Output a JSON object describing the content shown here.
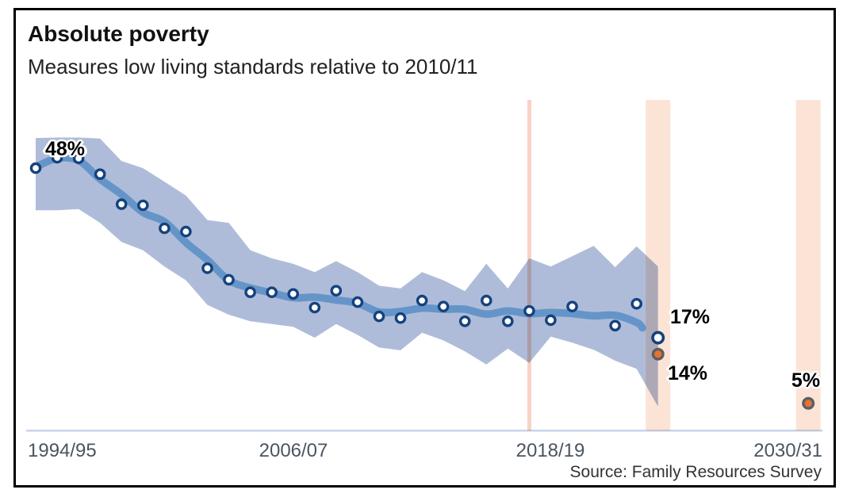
{
  "chart_data": {
    "type": "line",
    "title": "Absolute poverty",
    "subtitle": "Measures low living standards relative to 2010/11",
    "source": "Source: Family Resources Survey",
    "unit": "%",
    "ylabel": "",
    "xlabel": "",
    "ylim": [
      0,
      60.5
    ],
    "grid": false,
    "legend_position": "none",
    "x_tick_labels": [
      "1994/95",
      "2006/07",
      "2018/19",
      "2030/31"
    ],
    "x_tick_year_index": [
      0,
      12,
      24,
      36
    ],
    "years": [
      "1994/95",
      "1995/96",
      "1996/97",
      "1997/98",
      "1998/99",
      "1999/00",
      "2000/01",
      "2001/02",
      "2002/03",
      "2003/04",
      "2004/05",
      "2005/06",
      "2006/07",
      "2007/08",
      "2008/09",
      "2009/10",
      "2010/11",
      "2011/12",
      "2012/13",
      "2013/14",
      "2014/15",
      "2015/16",
      "2016/17",
      "2017/18",
      "2018/19",
      "2019/20",
      "2020/21",
      "2021/22",
      "2022/23",
      "2023/24"
    ],
    "values": [
      48.0,
      49.9,
      49.8,
      46.9,
      41.4,
      41.2,
      37.0,
      36.4,
      29.7,
      27.6,
      25.3,
      25.3,
      25.0,
      22.5,
      25.6,
      23.5,
      20.9,
      20.6,
      23.8,
      22.7,
      20.0,
      23.8,
      20.0,
      21.9,
      20.2,
      22.7,
      null,
      19.2,
      23.2,
      17.0
    ],
    "band_upper": [
      53.5,
      53.6,
      53.6,
      53.4,
      49.3,
      48.0,
      45.5,
      43.0,
      38.5,
      38.0,
      33.0,
      31.5,
      30.5,
      29.0,
      31.0,
      29.0,
      26.5,
      26.0,
      29.0,
      27.5,
      25.5,
      30.5,
      26.0,
      31.5,
      30.0,
      31.9,
      33.8,
      29.9,
      33.7,
      30.0
    ],
    "band_lower": [
      40.3,
      40.3,
      40.5,
      38.0,
      34.5,
      33.0,
      30.0,
      27.5,
      23.0,
      21.2,
      20.0,
      19.5,
      19.0,
      17.0,
      19.5,
      17.5,
      15.2,
      14.7,
      17.9,
      16.5,
      14.5,
      12.1,
      15.0,
      12.4,
      17.2,
      16.1,
      14.8,
      12.8,
      11.3,
      4.4
    ],
    "trend": [
      48.2,
      49.8,
      49.4,
      46.0,
      43.2,
      39.9,
      38.2,
      34.4,
      31.2,
      27.5,
      26.1,
      25.2,
      24.3,
      24.4,
      23.9,
      23.3,
      21.7,
      21.8,
      22.4,
      22.2,
      22.2,
      21.3,
      21.9,
      21.4,
      21.6,
      21.4,
      21.0,
      21.1,
      19.8
    ],
    "trend_end": {
      "year_index": 28.27,
      "value": 18.8
    },
    "missing_data_year": "2020/21",
    "annotations": [
      {
        "text": "48%",
        "year": "1994/95",
        "value": 48
      },
      {
        "text": "17%",
        "year": "2023/24",
        "value": 17
      },
      {
        "text": "14%",
        "year": "2023/24",
        "value": 14
      },
      {
        "text": "5%",
        "year": "2030/31",
        "value": 5
      }
    ],
    "projections": [
      {
        "year": "2023/24",
        "year_index": 29,
        "value": 14
      },
      {
        "year": "2030/31",
        "year_index": 36,
        "value": 5
      }
    ],
    "highlights": {
      "thin_line_year_index": 23,
      "thin_line_year": "2017/18",
      "band_year_indices": [
        29,
        36
      ],
      "band_years": [
        "2023/24",
        "2030/31"
      ]
    },
    "colors": {
      "band": "#afbcd9",
      "trend_line": "#6595c8",
      "marker_ring": "#14427e",
      "marker_fill": "#ffffff",
      "projection_fill": "#e87231",
      "projection_ring": "#5b5f63",
      "highlight_band": "#fbe4d6",
      "highlight_line": "#f7d3c4",
      "axis_line": "#c9d4ea",
      "tick_text": "#4b5560"
    }
  }
}
